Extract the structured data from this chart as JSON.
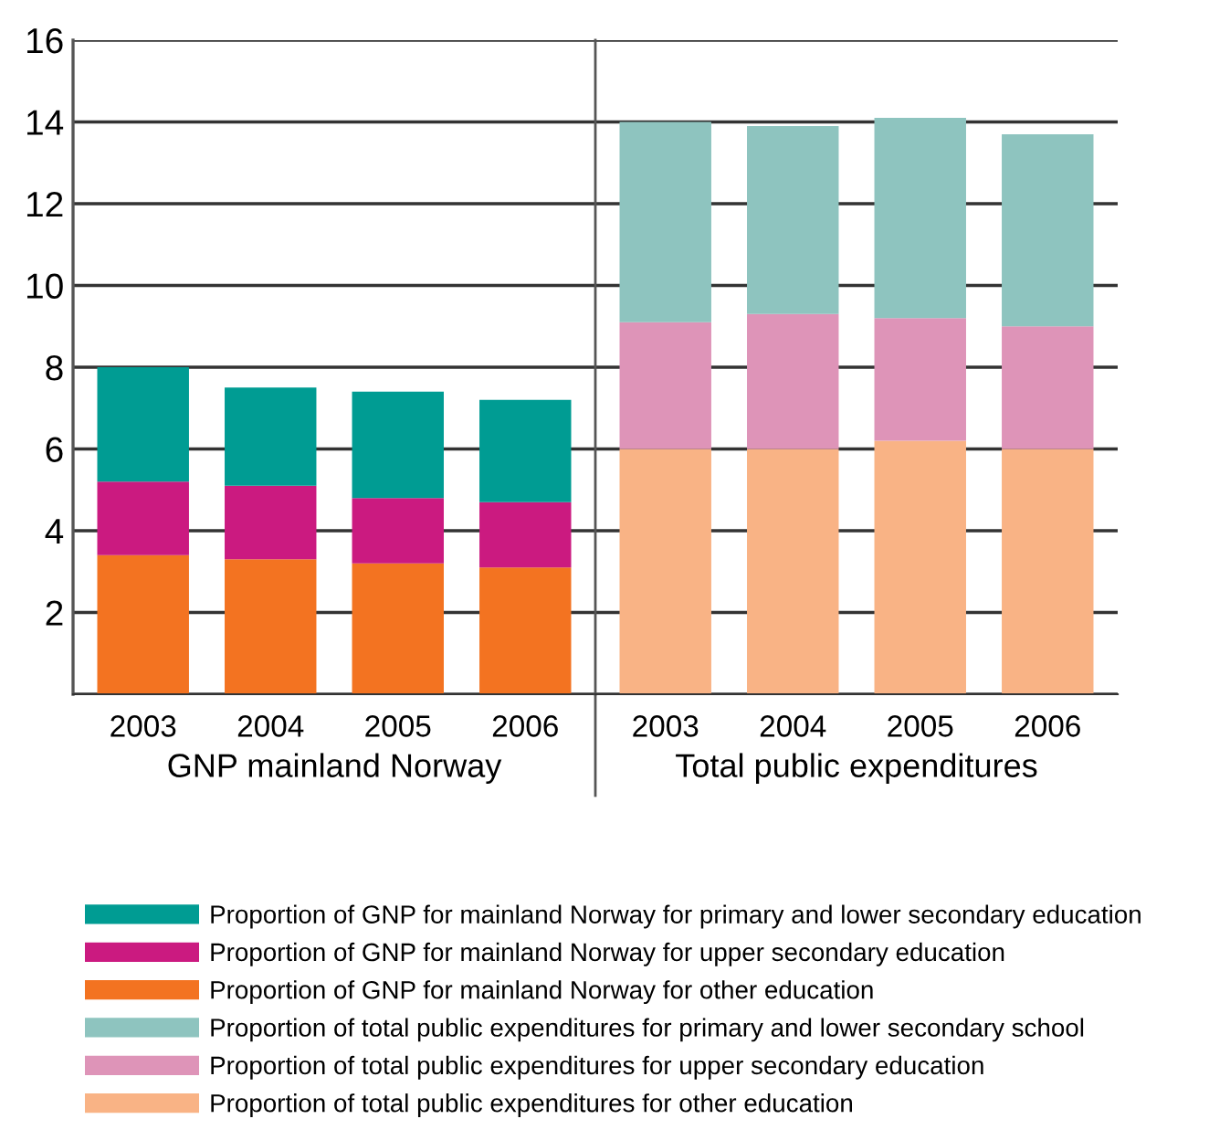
{
  "chart_data": [
    {
      "type": "bar",
      "stacked": true,
      "xlabel": "GNP mainland Norway",
      "categories": [
        "2003",
        "2004",
        "2005",
        "2006"
      ],
      "ylim": [
        0,
        16
      ],
      "yticks": [
        {
          "value": 0,
          "label": null
        },
        2,
        4,
        6,
        8,
        10,
        12,
        14,
        16
      ],
      "grid": "y",
      "legend": "bottom",
      "series": [
        {
          "name": "Proportion of GNP for mainland Norway for other education",
          "color": "#f37321",
          "values": [
            3.4,
            3.3,
            3.2,
            3.1
          ]
        },
        {
          "name": "Proportion of GNP for mainland Norway for upper secondary education",
          "color": "#cb1a80",
          "values": [
            1.8,
            1.8,
            1.6,
            1.6
          ]
        },
        {
          "name": "Proportion of GNP for mainland Norway for primary and lower secondary education",
          "color": "#009c93",
          "values": [
            2.8,
            2.4,
            2.6,
            2.5
          ]
        }
      ]
    },
    {
      "type": "bar",
      "stacked": true,
      "xlabel": "Total public expenditures",
      "categories": [
        "2003",
        "2004",
        "2005",
        "2006"
      ],
      "ylim": [
        0,
        16
      ],
      "yticks": [
        {
          "value": 0,
          "label": null
        },
        2,
        4,
        6,
        8,
        10,
        12,
        14,
        16
      ],
      "grid": "y",
      "legend": "bottom",
      "tick_labels": "x",
      "series": [
        {
          "name": "Proportion of total public expenditures for other education",
          "color": "#f9b385",
          "values": [
            6.0,
            6.0,
            6.2,
            6.0
          ]
        },
        {
          "name": "Proportion of total public expenditures for upper secondary education",
          "color": "#de94b8",
          "values": [
            3.1,
            3.3,
            3.0,
            3.0
          ]
        },
        {
          "name": "Proportion of total public expenditures for primary and lower secondary school",
          "color": "#8ec4bf",
          "values": [
            4.9,
            4.6,
            4.9,
            4.7
          ]
        }
      ]
    }
  ]
}
